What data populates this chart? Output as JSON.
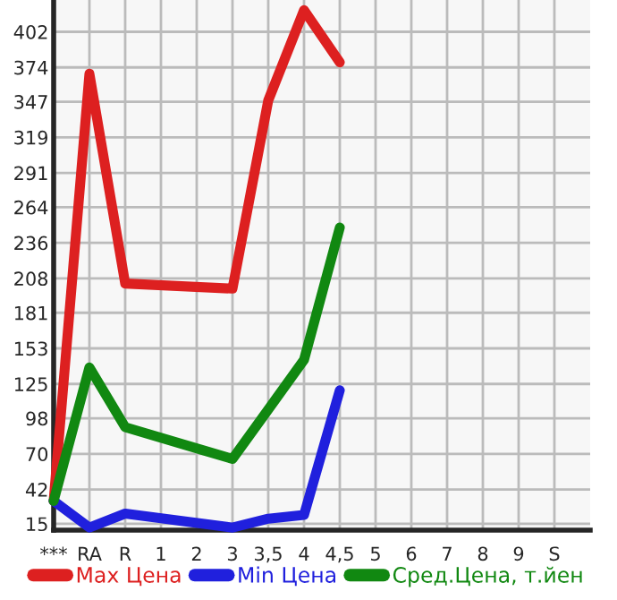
{
  "chart_data": {
    "type": "line",
    "categories": [
      "***",
      "RA",
      "R",
      "1",
      "2",
      "3",
      "3,5",
      "4",
      "4,5",
      "5",
      "6",
      "7",
      "8",
      "9",
      "S"
    ],
    "series": [
      {
        "name": "Max Цена",
        "color": "#dd2020",
        "values": [
          33,
          369,
          204,
          null,
          null,
          200,
          348,
          419,
          378,
          null,
          null,
          null,
          null,
          null,
          null
        ]
      },
      {
        "name": "Min Цена",
        "color": "#2020dd",
        "values": [
          33,
          12,
          23,
          null,
          null,
          12,
          19,
          22,
          120,
          null,
          null,
          null,
          null,
          null,
          null
        ]
      },
      {
        "name": "Сред.Цена, т.йен",
        "color": "#118811",
        "values": [
          33,
          138,
          91,
          null,
          null,
          66,
          105,
          144,
          248,
          null,
          null,
          null,
          null,
          null,
          null
        ]
      }
    ],
    "ylim": [
      10,
      427
    ],
    "yticks": [
      15,
      42,
      70,
      98,
      125,
      153,
      181,
      208,
      236,
      264,
      291,
      319,
      347,
      374,
      402
    ],
    "grid": true,
    "legend": "bottom",
    "marker": "none",
    "line_style": "solid"
  }
}
